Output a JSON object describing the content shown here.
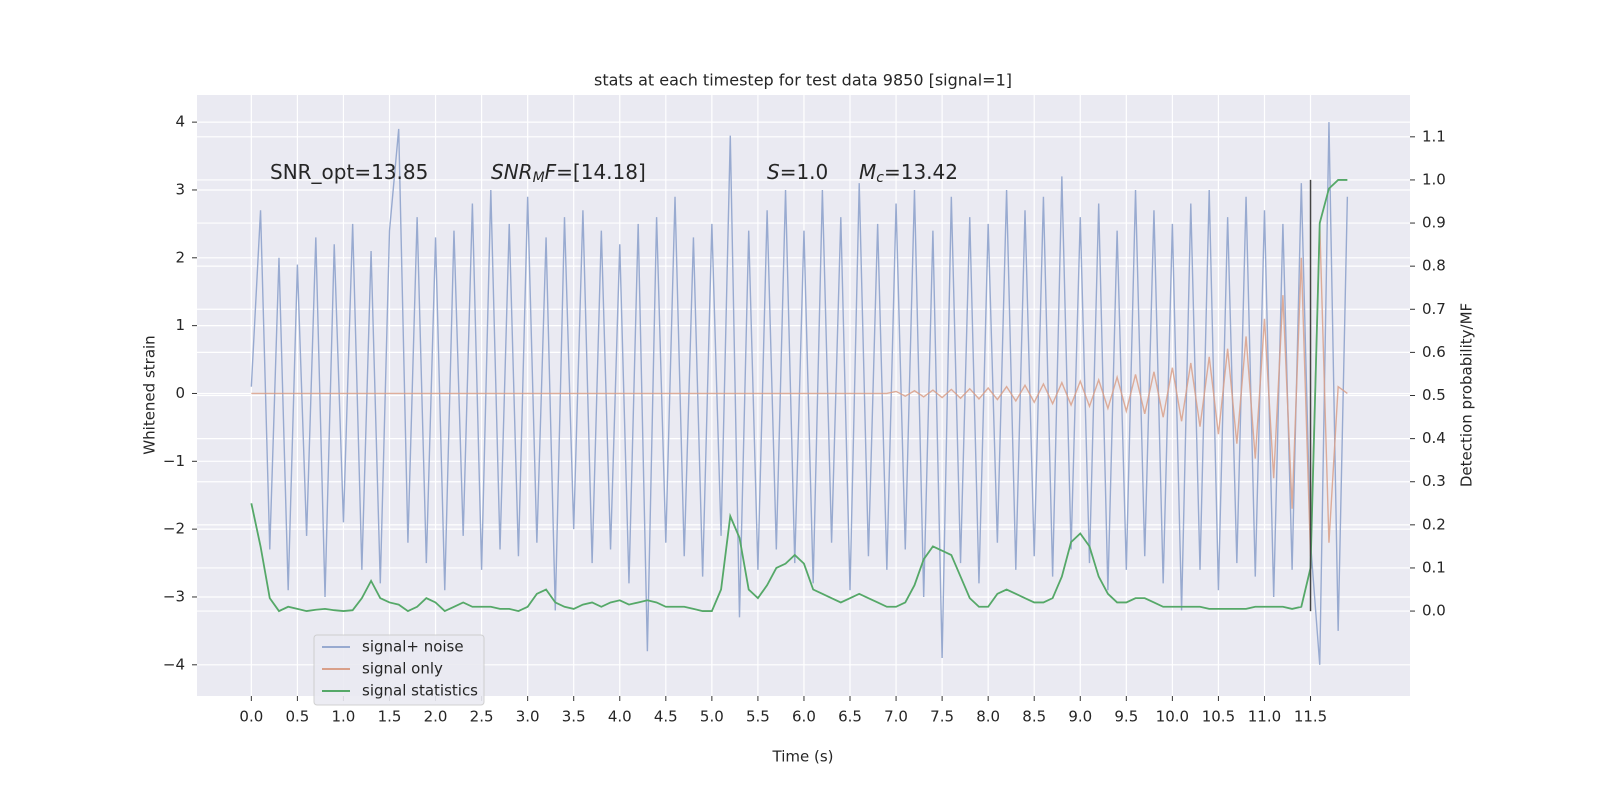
{
  "chart_data": {
    "type": "line",
    "title": "stats at each timestep for test data 9850 [signal=1]",
    "xlabel": "Time (s)",
    "ylabel": "Whitened strain",
    "y2label": "Detection probability/MF",
    "grid": true,
    "legend": "lower left",
    "annotations": [
      {
        "segments": [
          {
            "text": "SNR_opt=13.85",
            "style": "normal"
          }
        ]
      },
      {
        "segments": [
          {
            "text": "SNR",
            "style": "italic"
          },
          {
            "text": "M",
            "style": "italic-sub"
          },
          {
            "text": "F",
            "style": "italic"
          },
          {
            "text": "=[14.18]",
            "style": "normal"
          }
        ]
      },
      {
        "segments": [
          {
            "text": "S",
            "style": "italic"
          },
          {
            "text": "=1.0",
            "style": "normal"
          }
        ]
      },
      {
        "segments": [
          {
            "text": "M",
            "style": "italic"
          },
          {
            "text": "c",
            "style": "italic-sub"
          },
          {
            "text": "=13.42",
            "style": "normal"
          }
        ]
      }
    ],
    "vline": {
      "x": 11.5,
      "ymin": 0,
      "ymax": 1,
      "axis": "y2",
      "color": "#444444"
    },
    "xlim": [
      -0.59,
      12.58
    ],
    "ylim": [
      -4.46,
      4.4
    ],
    "y2lim": [
      -0.197,
      1.197
    ],
    "xticks": [
      {
        "value": 0,
        "label": "0.0"
      },
      0.5,
      {
        "value": 1,
        "label": "1.0"
      },
      1.5,
      {
        "value": 2,
        "label": "2.0"
      },
      2.5,
      {
        "value": 3,
        "label": "3.0"
      },
      3.5,
      {
        "value": 4,
        "label": "4.0"
      },
      4.5,
      {
        "value": 5,
        "label": "5.0"
      },
      5.5,
      {
        "value": 6,
        "label": "6.0"
      },
      6.5,
      {
        "value": 7,
        "label": "7.0"
      },
      7.5,
      {
        "value": 8,
        "label": "8.0"
      },
      8.5,
      {
        "value": 9,
        "label": "9.0"
      },
      9.5,
      {
        "value": 10,
        "label": "10.0"
      },
      10.5,
      {
        "value": 11,
        "label": "11.0"
      },
      11.5
    ],
    "yticks": [
      {
        "value": -4,
        "label": "−4"
      },
      {
        "value": -3,
        "label": "−3"
      },
      {
        "value": -2,
        "label": "−2"
      },
      {
        "value": -1,
        "label": "−1"
      },
      0,
      1,
      2,
      3,
      4
    ],
    "y2ticks": [
      {
        "value": 0,
        "label": "0.0"
      },
      0.1,
      0.2,
      0.3,
      0.4,
      0.5,
      0.6,
      0.7,
      0.8,
      0.9,
      {
        "value": 1,
        "label": "1.0"
      },
      1.1
    ],
    "x": [
      0,
      0.1,
      0.2,
      0.3,
      0.4,
      0.5,
      0.6,
      0.7,
      0.8,
      0.9,
      1,
      1.1,
      1.2,
      1.3,
      1.4,
      1.5,
      1.6,
      1.7,
      1.8,
      1.9,
      2,
      2.1,
      2.2,
      2.3,
      2.4,
      2.5,
      2.6,
      2.7,
      2.8,
      2.9,
      3,
      3.1,
      3.2,
      3.3,
      3.4,
      3.5,
      3.6,
      3.7,
      3.8,
      3.9,
      4,
      4.1,
      4.2,
      4.3,
      4.4,
      4.5,
      4.6,
      4.7,
      4.8,
      4.9,
      5,
      5.1,
      5.2,
      5.3,
      5.4,
      5.5,
      5.6,
      5.7,
      5.8,
      5.9,
      6,
      6.1,
      6.2,
      6.3,
      6.4,
      6.5,
      6.6,
      6.7,
      6.8,
      6.9,
      7,
      7.1,
      7.2,
      7.3,
      7.4,
      7.5,
      7.6,
      7.7,
      7.8,
      7.9,
      8,
      8.1,
      8.2,
      8.3,
      8.4,
      8.5,
      8.6,
      8.7,
      8.8,
      8.9,
      9,
      9.1,
      9.2,
      9.3,
      9.4,
      9.5,
      9.6,
      9.7,
      9.8,
      9.9,
      10,
      10.1,
      10.2,
      10.3,
      10.4,
      10.5,
      10.6,
      10.7,
      10.8,
      10.9,
      11,
      11.1,
      11.2,
      11.3,
      11.4,
      11.5,
      11.6,
      11.7,
      11.8,
      11.9
    ],
    "series": [
      {
        "name": "signal+ noise",
        "color": "#98aad0",
        "values": [
          0.1,
          2.7,
          -2.3,
          2.0,
          -2.9,
          1.9,
          -2.1,
          2.3,
          -3.0,
          2.2,
          -1.9,
          2.5,
          -2.6,
          2.1,
          -2.8,
          2.4,
          3.9,
          -2.2,
          2.6,
          -2.5,
          2.3,
          -2.9,
          2.4,
          -2.1,
          2.8,
          -2.6,
          3.0,
          -2.3,
          2.5,
          -2.4,
          2.9,
          -2.2,
          2.3,
          -3.2,
          2.6,
          -2.0,
          2.7,
          -2.5,
          2.4,
          -2.3,
          2.2,
          -2.8,
          2.5,
          -3.8,
          2.6,
          -2.2,
          2.9,
          -2.4,
          2.3,
          -2.7,
          2.5,
          -2.1,
          3.8,
          -3.3,
          2.4,
          -2.6,
          2.7,
          -2.3,
          3.0,
          -2.5,
          2.4,
          -2.8,
          3.0,
          -2.2,
          2.6,
          -2.9,
          3.1,
          -2.4,
          2.5,
          -2.6,
          2.8,
          -2.3,
          3.0,
          -3.0,
          2.4,
          -3.9,
          2.9,
          -2.5,
          2.6,
          -2.8,
          2.5,
          -2.2,
          3.0,
          -2.6,
          2.7,
          -2.4,
          2.9,
          -2.7,
          3.2,
          -2.3,
          2.6,
          -2.5,
          2.8,
          -2.9,
          2.4,
          -2.6,
          3.0,
          -2.4,
          2.7,
          -2.8,
          2.5,
          -3.2,
          2.8,
          -2.6,
          3.0,
          -2.9,
          2.6,
          -2.5,
          2.9,
          -2.7,
          2.7,
          -3.0,
          2.5,
          -2.6,
          3.1,
          -2.2,
          -4.0,
          4.0,
          -3.5,
          2.9
        ]
      },
      {
        "name": "signal only",
        "color": "#d9a08a",
        "values": [
          0,
          0,
          0,
          0,
          0,
          0,
          0,
          0,
          0,
          0,
          0,
          0,
          0,
          0,
          0,
          0,
          0,
          0,
          0,
          0,
          0,
          0,
          0,
          0,
          0,
          0,
          0,
          0,
          0,
          0,
          0,
          0,
          0,
          0,
          0,
          0,
          0,
          0,
          0,
          0,
          0,
          0,
          0,
          0,
          0,
          0,
          0,
          0,
          0,
          0,
          0,
          0,
          0,
          0,
          0,
          0,
          0,
          0,
          0,
          0,
          0,
          0,
          0,
          0,
          0,
          0,
          0,
          0,
          0,
          0,
          0.03,
          -0.04,
          0.04,
          -0.05,
          0.05,
          -0.06,
          0.06,
          -0.07,
          0.07,
          -0.08,
          0.08,
          -0.09,
          0.1,
          -0.11,
          0.12,
          -0.13,
          0.14,
          -0.15,
          0.16,
          -0.17,
          0.18,
          -0.19,
          0.2,
          -0.22,
          0.24,
          -0.26,
          0.28,
          -0.3,
          0.32,
          -0.35,
          0.38,
          -0.41,
          0.45,
          -0.49,
          0.54,
          -0.6,
          0.66,
          -0.74,
          0.84,
          -0.96,
          1.1,
          -1.25,
          1.45,
          -1.7,
          2.0,
          -2.4,
          2.5,
          -2.2,
          0.1,
          0
        ]
      },
      {
        "name": "signal statistics",
        "color": "#55a868",
        "axis": "y2",
        "values": [
          0.25,
          0.15,
          0.03,
          0,
          0.01,
          0.005,
          0,
          0.003,
          0.005,
          0.002,
          0,
          0.002,
          0.03,
          0.07,
          0.03,
          0.02,
          0.015,
          0,
          0.01,
          0.03,
          0.02,
          0,
          0.01,
          0.02,
          0.01,
          0.01,
          0.01,
          0.005,
          0.005,
          0,
          0.01,
          0.04,
          0.05,
          0.02,
          0.01,
          0.005,
          0.015,
          0.02,
          0.01,
          0.02,
          0.025,
          0.015,
          0.02,
          0.025,
          0.02,
          0.01,
          0.01,
          0.01,
          0.005,
          0,
          0,
          0.05,
          0.22,
          0.17,
          0.05,
          0.03,
          0.06,
          0.1,
          0.11,
          0.13,
          0.11,
          0.05,
          0.04,
          0.03,
          0.02,
          0.03,
          0.04,
          0.03,
          0.02,
          0.01,
          0.01,
          0.02,
          0.06,
          0.12,
          0.15,
          0.14,
          0.13,
          0.08,
          0.03,
          0.01,
          0.01,
          0.04,
          0.05,
          0.04,
          0.03,
          0.02,
          0.02,
          0.03,
          0.08,
          0.16,
          0.18,
          0.15,
          0.08,
          0.04,
          0.02,
          0.02,
          0.03,
          0.03,
          0.02,
          0.01,
          0.01,
          0.01,
          0.01,
          0.01,
          0.005,
          0.005,
          0.005,
          0.005,
          0.005,
          0.01,
          0.01,
          0.01,
          0.01,
          0.005,
          0.01,
          0.1,
          0.9,
          0.98,
          1.0,
          1.0
        ]
      }
    ]
  }
}
